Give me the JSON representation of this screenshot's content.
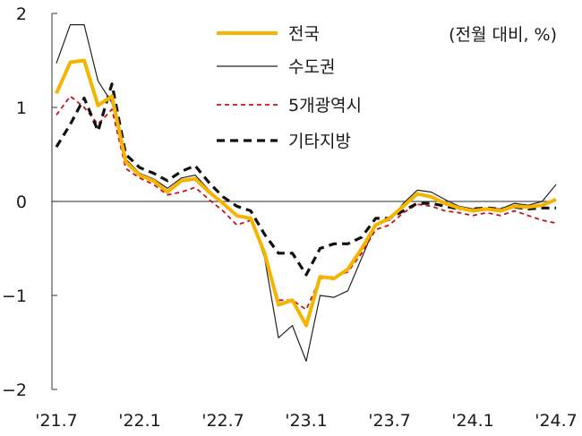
{
  "chart_data": {
    "type": "line",
    "title": "",
    "unit_note": "(전월 대비, %)",
    "xlabel": "",
    "ylabel": "",
    "ylim": [
      -2,
      2
    ],
    "yticks": [
      2,
      1,
      0,
      -1,
      -2
    ],
    "ytick_labels": [
      "2",
      "1",
      "0",
      "−1",
      "−2"
    ],
    "x_tick_labels": [
      "'21.7",
      "'22.1",
      "'22.7",
      "'23.1",
      "'23.7",
      "'24.1",
      "'24.7"
    ],
    "x_tick_index": [
      0,
      6,
      12,
      18,
      24,
      30,
      36
    ],
    "grid": false,
    "legend_position": "top-right",
    "categories": [
      "21.7",
      "21.8",
      "21.9",
      "21.10",
      "21.11",
      "21.12",
      "22.1",
      "22.2",
      "22.3",
      "22.4",
      "22.5",
      "22.6",
      "22.7",
      "22.8",
      "22.9",
      "22.10",
      "22.11",
      "22.12",
      "23.1",
      "23.2",
      "23.3",
      "23.4",
      "23.5",
      "23.6",
      "23.7",
      "23.8",
      "23.9",
      "23.10",
      "23.11",
      "23.12",
      "24.1",
      "24.2",
      "24.3",
      "24.4",
      "24.5",
      "24.6",
      "24.7"
    ],
    "series": [
      {
        "name": "전국",
        "color": "#f5b400",
        "dash": "solid",
        "width": 4,
        "values": [
          1.15,
          1.48,
          1.5,
          1.02,
          1.12,
          0.42,
          0.28,
          0.22,
          0.1,
          0.22,
          0.24,
          0.1,
          -0.02,
          -0.15,
          -0.18,
          -0.55,
          -1.1,
          -1.05,
          -1.32,
          -0.8,
          -0.82,
          -0.72,
          -0.5,
          -0.25,
          -0.18,
          -0.05,
          0.08,
          0.05,
          -0.02,
          -0.07,
          -0.1,
          -0.08,
          -0.1,
          -0.05,
          -0.06,
          -0.04,
          0.02
        ]
      },
      {
        "name": "수도권",
        "color": "#222222",
        "dash": "solid",
        "width": 1.2,
        "values": [
          1.47,
          1.88,
          1.88,
          1.28,
          1.05,
          0.45,
          0.3,
          0.24,
          0.14,
          0.25,
          0.28,
          0.12,
          -0.02,
          -0.15,
          -0.17,
          -0.6,
          -1.45,
          -1.32,
          -1.7,
          -1.0,
          -1.02,
          -0.95,
          -0.6,
          -0.25,
          -0.2,
          -0.02,
          0.12,
          0.1,
          0.02,
          -0.05,
          -0.08,
          -0.07,
          -0.08,
          -0.02,
          -0.04,
          0.0,
          0.18
        ]
      },
      {
        "name": "5개광역시",
        "color": "#c0141b",
        "dash": "dashed",
        "width": 1.8,
        "values": [
          0.92,
          1.12,
          1.0,
          0.82,
          0.98,
          0.35,
          0.25,
          0.18,
          0.07,
          0.1,
          0.15,
          0.02,
          -0.1,
          -0.25,
          -0.2,
          -0.55,
          -1.05,
          -1.05,
          -1.15,
          -0.82,
          -0.8,
          -0.75,
          -0.55,
          -0.3,
          -0.25,
          -0.12,
          -0.03,
          -0.05,
          -0.1,
          -0.12,
          -0.15,
          -0.12,
          -0.15,
          -0.1,
          -0.15,
          -0.2,
          -0.23
        ]
      },
      {
        "name": "기타지방",
        "color": "#111111",
        "dash": "dashed",
        "width": 3.2,
        "values": [
          0.58,
          0.82,
          1.1,
          0.75,
          1.25,
          0.5,
          0.36,
          0.3,
          0.22,
          0.32,
          0.38,
          0.2,
          0.05,
          -0.05,
          -0.1,
          -0.35,
          -0.55,
          -0.55,
          -0.78,
          -0.5,
          -0.45,
          -0.45,
          -0.38,
          -0.18,
          -0.18,
          -0.1,
          -0.02,
          -0.02,
          -0.05,
          -0.08,
          -0.08,
          -0.07,
          -0.08,
          -0.06,
          -0.08,
          -0.07,
          -0.07
        ]
      }
    ]
  }
}
